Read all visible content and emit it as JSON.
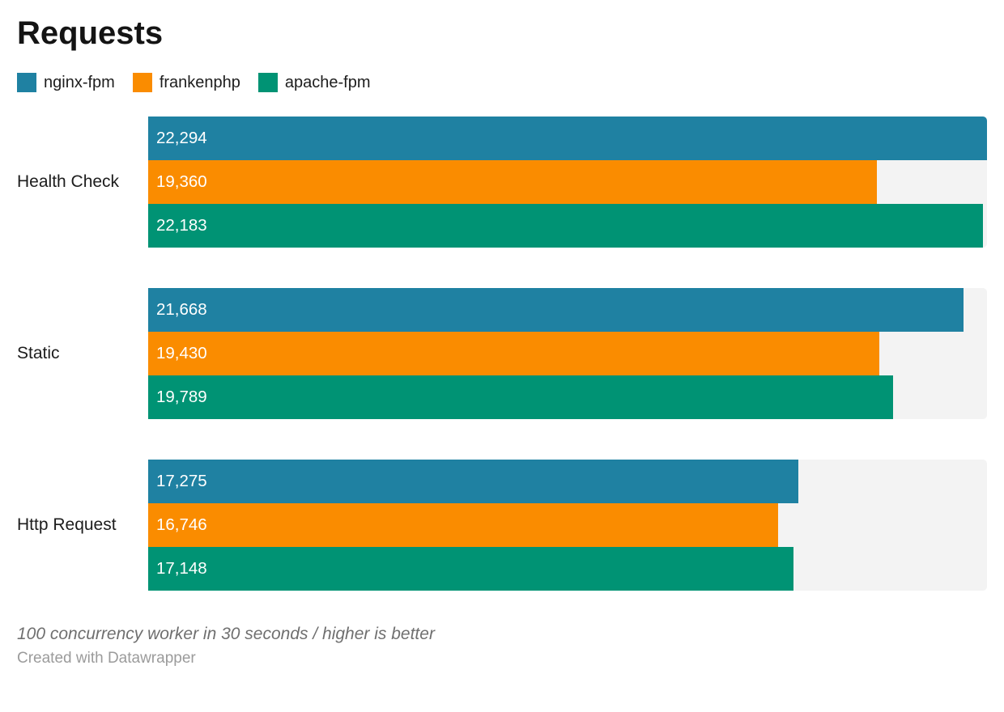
{
  "chart_data": {
    "type": "bar",
    "orientation": "horizontal",
    "title": "Requests",
    "note": "100 concurrency worker in 30 seconds / higher is better",
    "byline": "Created with Datawrapper",
    "categories": [
      "Health Check",
      "Static",
      "Http Request"
    ],
    "series": [
      {
        "name": "nginx-fpm",
        "color": "#1f81a2",
        "values": [
          22294,
          21668,
          17275
        ]
      },
      {
        "name": "frankenphp",
        "color": "#fa8c00",
        "values": [
          19360,
          19430,
          16746
        ]
      },
      {
        "name": "apache-fpm",
        "color": "#009374",
        "values": [
          22183,
          19789,
          17148
        ]
      }
    ],
    "value_labels": [
      "22,294",
      "19,360",
      "22,183",
      "21,668",
      "19,430",
      "19,789",
      "17,275",
      "16,746",
      "17,148"
    ],
    "xlim": [
      0,
      22294
    ],
    "axis_hidden": true,
    "legend_position": "top-left",
    "track_color": "#f3f3f3",
    "grid": false
  }
}
